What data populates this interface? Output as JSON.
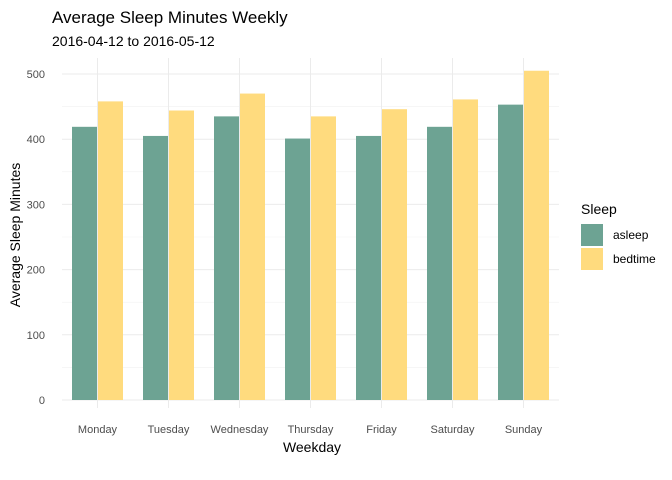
{
  "chart_data": {
    "type": "bar",
    "title": "Average Sleep Minutes Weekly",
    "subtitle": "2016-04-12 to 2016-05-12",
    "xlabel": "Weekday",
    "ylabel": "Average Sleep Minutes",
    "categories": [
      "Monday",
      "Tuesday",
      "Wednesday",
      "Thursday",
      "Friday",
      "Saturday",
      "Sunday"
    ],
    "series": [
      {
        "name": "asleep",
        "color": "#6da393",
        "values": [
          419,
          405,
          435,
          401,
          405,
          419,
          453
        ]
      },
      {
        "name": "bedtime",
        "color": "#ffdb7e",
        "values": [
          458,
          444,
          470,
          435,
          446,
          461,
          505
        ]
      }
    ],
    "ylim": [
      0,
      525
    ],
    "yticks": [
      0,
      100,
      200,
      300,
      400,
      500
    ],
    "grid": true,
    "legend": {
      "title": "Sleep",
      "position": "right"
    }
  }
}
